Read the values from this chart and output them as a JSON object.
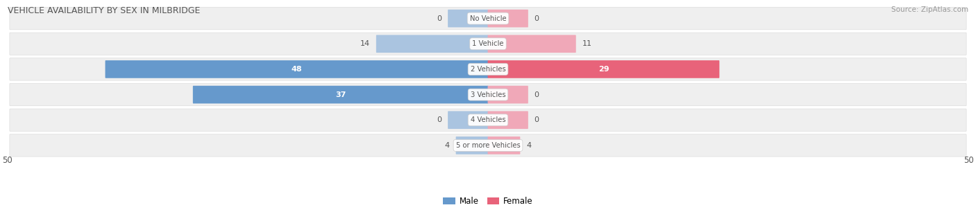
{
  "title": "VEHICLE AVAILABILITY BY SEX IN MILBRIDGE",
  "source": "Source: ZipAtlas.com",
  "categories": [
    "No Vehicle",
    "1 Vehicle",
    "2 Vehicles",
    "3 Vehicles",
    "4 Vehicles",
    "5 or more Vehicles"
  ],
  "male_values": [
    0,
    14,
    48,
    37,
    0,
    4
  ],
  "female_values": [
    0,
    11,
    29,
    0,
    0,
    4
  ],
  "male_color_strong": "#6699cc",
  "male_color_light": "#aac4e0",
  "female_color_strong": "#e8637a",
  "female_color_light": "#f0a8b8",
  "row_bg_color": "#efefef",
  "axis_max": 50,
  "label_color_dark": "#555555",
  "label_color_white": "#ffffff",
  "legend_male": "Male",
  "legend_female": "Female",
  "title_color": "#555555",
  "source_color": "#999999",
  "strong_threshold": 20,
  "stub_size": 5
}
